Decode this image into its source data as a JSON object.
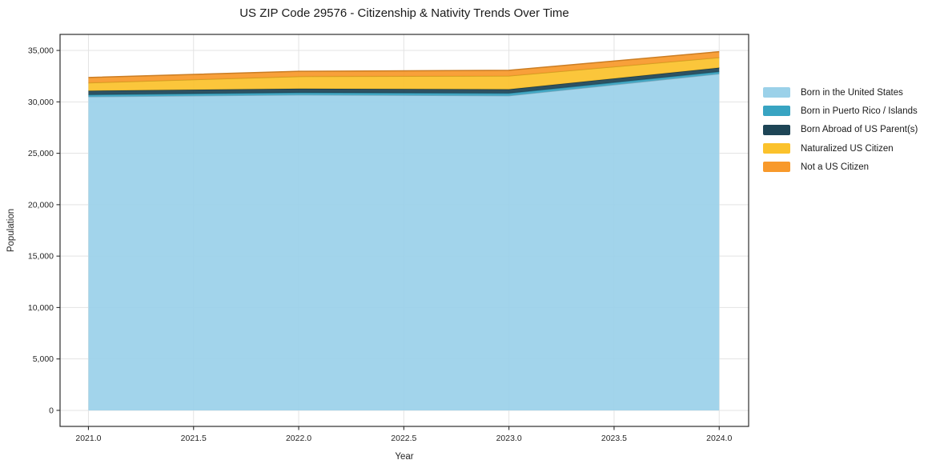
{
  "chart_data": {
    "type": "area",
    "stacked": true,
    "title": "US ZIP Code 29576 - Citizenship & Nativity Trends Over Time",
    "xlabel": "Year",
    "ylabel": "Population",
    "x": [
      2021,
      2022,
      2023,
      2024
    ],
    "series": [
      {
        "name": "Born in the United States",
        "color": "#9BD1E9",
        "values": [
          30500,
          30680,
          30600,
          32730
        ]
      },
      {
        "name": "Born in Puerto Rico / Islands",
        "color": "#38A4C2",
        "values": [
          190,
          210,
          230,
          200
        ]
      },
      {
        "name": "Born Abroad of US Parent(s)",
        "color": "#1E4556",
        "values": [
          390,
          390,
          390,
          390
        ]
      },
      {
        "name": "Naturalized US Citizen",
        "color": "#FBC22C",
        "values": [
          770,
          1190,
          1300,
          990
        ]
      },
      {
        "name": "Not a US Citizen",
        "color": "#F8992B",
        "values": [
          520,
          500,
          545,
          570
        ]
      }
    ],
    "xticks": {
      "values": [
        2021.0,
        2021.5,
        2022.0,
        2022.5,
        2023.0,
        2023.5,
        2024.0
      ],
      "labels": [
        "2021.0",
        "2021.5",
        "2022.0",
        "2022.5",
        "2023.0",
        "2023.5",
        "2024.0"
      ]
    },
    "yticks": {
      "values": [
        0,
        5000,
        10000,
        15000,
        20000,
        25000,
        30000,
        35000
      ],
      "labels": [
        "0",
        "5,000",
        "10,000",
        "15,000",
        "20,000",
        "25,000",
        "30,000",
        "35,000"
      ]
    },
    "xlim": [
      2020.865,
      2024.14
    ],
    "ylim": [
      -1560,
      36560
    ],
    "grid": true,
    "legend_position": "right",
    "colors": {
      "gridline": "#e3e3e3",
      "spine": "#2d2d2d",
      "tick_label": "#262626",
      "title_text": "#1a1a1a"
    }
  }
}
